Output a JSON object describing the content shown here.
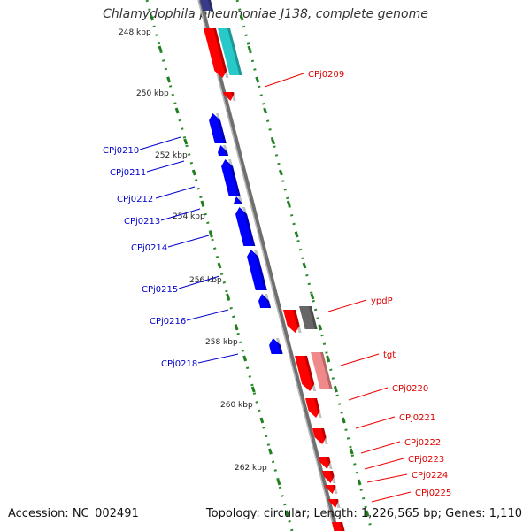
{
  "title": "Chlamydophila pneumoniae J138, complete genome",
  "footer": {
    "accession": "Accession: NC_002491",
    "summary": "Topology: circular; Length: 1,226,565 bp; Genes: 1,110"
  },
  "colors": {
    "backbone": "#8c8c8c",
    "forward_strand": "#ff0000",
    "reverse_strand": "#0000ff",
    "tick": "#1f7f1f",
    "faded_red": "#f08a8a",
    "cyan": "#27c9c9",
    "gray_feature": "#666666",
    "navy": "#3a3a8a"
  },
  "ruler": {
    "labels": [
      "248 kbp",
      "250 kbp",
      "252 kbp",
      "254 kbp",
      "256 kbp",
      "258 kbp",
      "260 kbp",
      "262 kbp"
    ]
  },
  "genes_forward": [
    {
      "name": "CPj0209"
    },
    {
      "name": "ypdP"
    },
    {
      "name": "tgt"
    },
    {
      "name": "CPj0220"
    },
    {
      "name": "CPj0221"
    },
    {
      "name": "CPj0222"
    },
    {
      "name": "CPj0223"
    },
    {
      "name": "CPj0224"
    },
    {
      "name": "CPj0225"
    }
  ],
  "genes_reverse": [
    {
      "name": "CPj0210"
    },
    {
      "name": "CPj0211"
    },
    {
      "name": "CPj0212"
    },
    {
      "name": "CPj0213"
    },
    {
      "name": "CPj0214"
    },
    {
      "name": "CPj0215"
    },
    {
      "name": "CPj0216"
    },
    {
      "name": "CPj0218"
    }
  ]
}
